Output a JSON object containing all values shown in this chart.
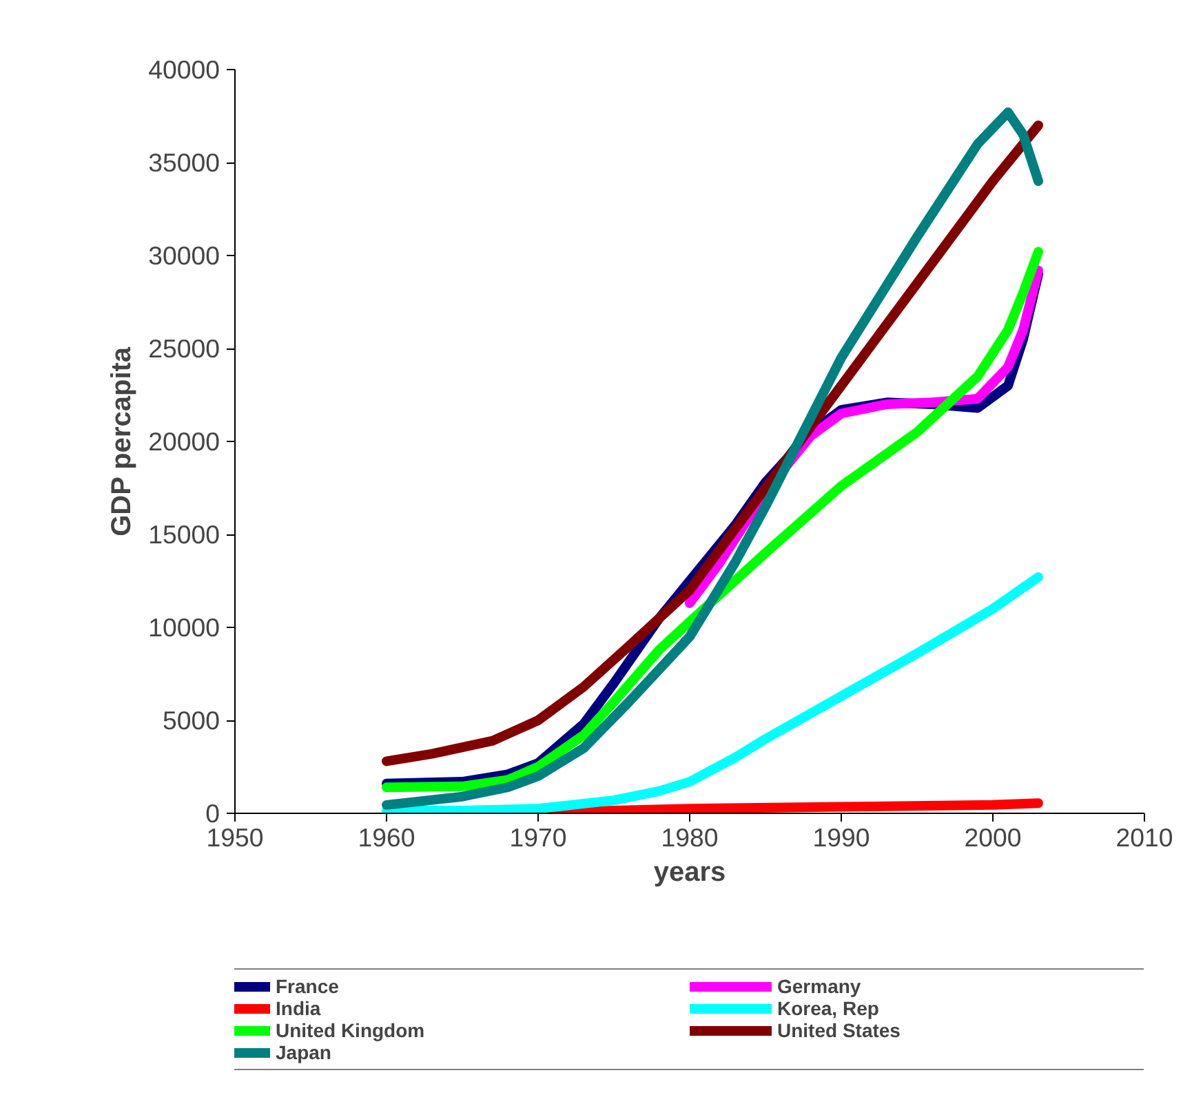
{
  "chart_data": {
    "type": "line",
    "xlabel": "years",
    "ylabel": "GDP percapita",
    "xlim": [
      1950,
      2010
    ],
    "xticks": [
      1950,
      1960,
      1970,
      1980,
      1990,
      2000,
      2010
    ],
    "ylim": [
      0,
      40000
    ],
    "yticks": [
      0,
      5000,
      10000,
      15000,
      20000,
      25000,
      30000,
      35000,
      40000
    ],
    "grid": false,
    "legend": "bottom",
    "marker": "none",
    "line_style": "solid",
    "series": [
      {
        "name": "France",
        "color": "#000080",
        "x": [
          1960,
          1965,
          1968,
          1970,
          1973,
          1975,
          1978,
          1980,
          1983,
          1985,
          1988,
          1990,
          1993,
          1996,
          1999,
          2001,
          2002,
          2003
        ],
        "values": [
          1600,
          1700,
          2100,
          2700,
          4800,
          7000,
          10500,
          12500,
          15500,
          17800,
          20500,
          21700,
          22100,
          22000,
          21800,
          23000,
          25500,
          29000
        ]
      },
      {
        "name": "Germany",
        "color": "#ff00ff",
        "x": [
          1980,
          1982,
          1985,
          1988,
          1990,
          1993,
          1996,
          1999,
          2001,
          2002,
          2003
        ],
        "values": [
          11300,
          13500,
          17300,
          20300,
          21500,
          22000,
          22100,
          22300,
          24000,
          26000,
          29200
        ]
      },
      {
        "name": "India",
        "color": "#ff0000",
        "x": [
          1970,
          1975,
          1980,
          1990,
          2000,
          2003
        ],
        "values": [
          0,
          150,
          250,
          350,
          450,
          550
        ]
      },
      {
        "name": "Korea, Rep",
        "color": "#00ffff",
        "x": [
          1960,
          1965,
          1970,
          1975,
          1978,
          1980,
          1983,
          1985,
          1990,
          1995,
          2000,
          2003
        ],
        "values": [
          150,
          150,
          250,
          700,
          1200,
          1700,
          3000,
          4000,
          6300,
          8600,
          11000,
          12700
        ]
      },
      {
        "name": "United Kingdom",
        "color": "#00ff00",
        "x": [
          1960,
          1965,
          1968,
          1970,
          1973,
          1975,
          1978,
          1980,
          1985,
          1990,
          1995,
          1999,
          2001,
          2002,
          2003
        ],
        "values": [
          1400,
          1450,
          1800,
          2500,
          4200,
          6000,
          8800,
          10300,
          14000,
          17600,
          20500,
          23500,
          26000,
          28000,
          30200
        ]
      },
      {
        "name": "United States",
        "color": "#800000",
        "x": [
          1960,
          1963,
          1967,
          1970,
          1973,
          1976,
          1980,
          1985,
          1990,
          1995,
          2000,
          2003
        ],
        "values": [
          2800,
          3200,
          3900,
          5000,
          6800,
          9000,
          12000,
          17500,
          23000,
          28500,
          34000,
          37000
        ]
      },
      {
        "name": "Japan",
        "color": "#008080",
        "x": [
          1960,
          1965,
          1968,
          1970,
          1973,
          1976,
          1980,
          1983,
          1985,
          1990,
          1995,
          1999,
          2001,
          2002,
          2003
        ],
        "values": [
          450,
          900,
          1400,
          2000,
          3500,
          6000,
          9500,
          13500,
          16500,
          24500,
          31000,
          36000,
          37700,
          36500,
          34000
        ]
      }
    ]
  }
}
